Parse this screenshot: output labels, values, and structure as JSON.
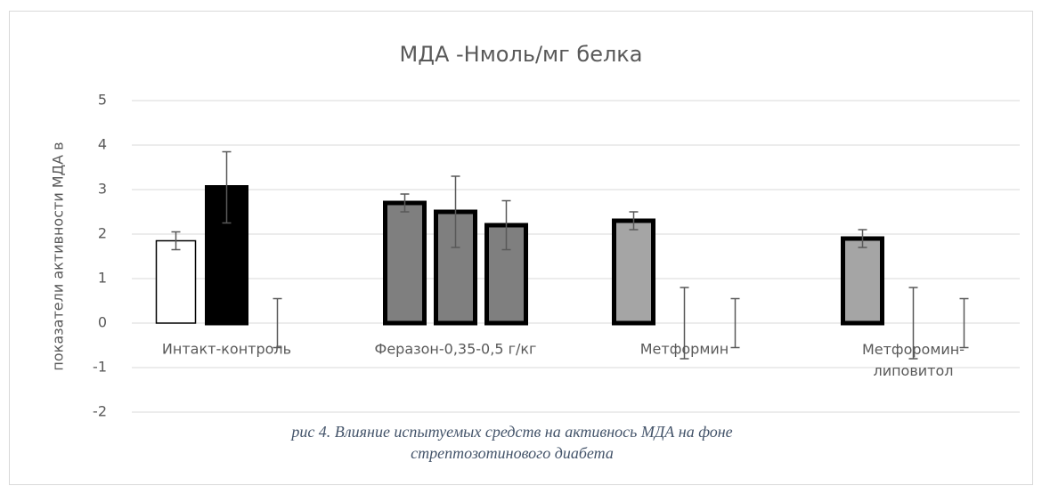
{
  "chart_data": {
    "type": "bar",
    "title": "МДА -Нмоль/мг белка",
    "y_label": "показатели активности МДА в",
    "categories": [
      "Интакт-контроль",
      "Феразон-0,35-0,5 г/кг",
      "Метформин",
      "Метфоромин-\nлиповитол"
    ],
    "series": [
      {
        "colors": [
          "#ffffff",
          "#7f7f7f",
          "#a5a5a5",
          "#a5a5a5"
        ],
        "values": [
          1.85,
          2.7,
          2.3,
          1.9
        ],
        "errors": [
          0.2,
          0.2,
          0.2,
          0.2
        ]
      },
      {
        "colors": [
          "#000000",
          "#7f7f7f",
          "#a5a5a5",
          "#a5a5a5"
        ],
        "values": [
          3.05,
          2.5,
          0,
          0
        ],
        "errors": [
          0.8,
          0.8,
          0.8,
          0.8
        ]
      },
      {
        "colors": [
          "#7f7f7f",
          "#7f7f7f",
          "#a5a5a5",
          "#a5a5a5"
        ],
        "values": [
          0,
          2.2,
          0,
          0
        ],
        "errors": [
          0.55,
          0.55,
          0.55,
          0.55
        ]
      }
    ],
    "ylim": [
      -2,
      5
    ],
    "yticks": [
      -2,
      -1,
      0,
      1,
      2,
      3,
      4,
      5
    ],
    "grid": true,
    "caption": [
      "рис 4. Влияние испытуемых средств на активнось МДА  на фоне",
      "стрептозотинового диабета"
    ]
  }
}
